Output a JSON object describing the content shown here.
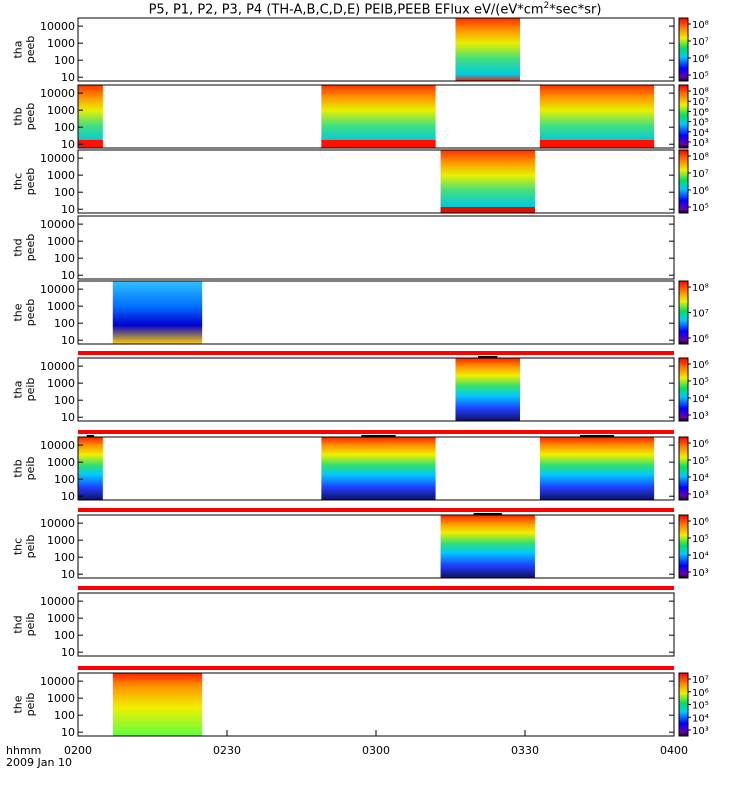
{
  "title": "P5, P1, P2, P3, P4 (TH-A,B,C,D,E) PEIB,PEEB EFlux eV/(eV*cm",
  "title_sup": "2",
  "title_tail": "*sec*sr)",
  "footer": {
    "hhmm_label": "hhmm",
    "date_label": "2009 Jan 10"
  },
  "chart_data": {
    "type": "heatmap",
    "x_axis": {
      "range": [
        "0200",
        "0400"
      ],
      "ticks": [
        "0200",
        "0230",
        "0300",
        "0330",
        "0400"
      ]
    },
    "y_ticks": [
      "10",
      "100",
      "1000",
      "10000"
    ],
    "panels": [
      {
        "label": [
          "tha",
          "peeb"
        ],
        "intervals": [
          [
            "0316",
            "0329"
          ]
        ],
        "cbar": [
          "10⁵",
          "10⁶",
          "10⁷",
          "10⁸"
        ],
        "type": "electron"
      },
      {
        "label": [
          "thb",
          "peeb"
        ],
        "intervals": [
          [
            "0200",
            "0205"
          ],
          [
            "0249",
            "0312"
          ],
          [
            "0333",
            "0356"
          ]
        ],
        "cbar": [
          "10³",
          "10⁴",
          "10⁵",
          "10⁶",
          "10⁷",
          "10⁸"
        ],
        "type": "electron"
      },
      {
        "label": [
          "thc",
          "peeb"
        ],
        "intervals": [
          [
            "0313",
            "0332"
          ]
        ],
        "cbar": [
          "10⁵",
          "10⁶",
          "10⁷",
          "10⁸"
        ],
        "type": "electron"
      },
      {
        "label": [
          "thd",
          "peeb"
        ],
        "intervals": [],
        "cbar": [],
        "type": "electron"
      },
      {
        "label": [
          "the",
          "peeb"
        ],
        "intervals": [
          [
            "0207",
            "0225"
          ]
        ],
        "cbar": [
          "10⁶",
          "10⁷",
          "10⁸"
        ],
        "type": "electron_e"
      },
      {
        "label": [
          "tha",
          "peib"
        ],
        "intervals": [
          [
            "0316",
            "0329"
          ]
        ],
        "cbar": [
          "10³",
          "10⁴",
          "10⁵",
          "10⁶"
        ],
        "type": "ion"
      },
      {
        "label": [
          "thb",
          "peib"
        ],
        "intervals": [
          [
            "0200",
            "0205"
          ],
          [
            "0249",
            "0312"
          ],
          [
            "0333",
            "0356"
          ]
        ],
        "cbar": [
          "10³",
          "10⁴",
          "10⁵",
          "10⁶"
        ],
        "type": "ion"
      },
      {
        "label": [
          "thc",
          "peib"
        ],
        "intervals": [
          [
            "0313",
            "0332"
          ]
        ],
        "cbar": [
          "10³",
          "10⁴",
          "10⁵",
          "10⁶"
        ],
        "type": "ion"
      },
      {
        "label": [
          "thd",
          "peib"
        ],
        "intervals": [],
        "cbar": [],
        "type": "ion"
      },
      {
        "label": [
          "the",
          "peib"
        ],
        "intervals": [
          [
            "0207",
            "0225"
          ]
        ],
        "cbar": [
          "10³",
          "10⁴",
          "10⁵",
          "10⁶",
          "10⁷"
        ],
        "type": "ion_e"
      }
    ]
  }
}
